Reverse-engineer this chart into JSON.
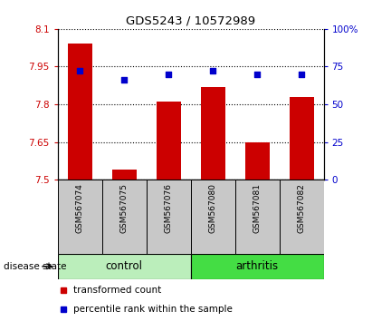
{
  "title": "GDS5243 / 10572989",
  "samples": [
    "GSM567074",
    "GSM567075",
    "GSM567076",
    "GSM567080",
    "GSM567081",
    "GSM567082"
  ],
  "transformed_counts": [
    8.04,
    7.54,
    7.81,
    7.87,
    7.65,
    7.83
  ],
  "percentile_ranks": [
    72,
    66,
    70,
    72,
    70,
    70
  ],
  "ylim_left": [
    7.5,
    8.1
  ],
  "ylim_right": [
    0,
    100
  ],
  "yticks_left": [
    7.5,
    7.65,
    7.8,
    7.95,
    8.1
  ],
  "yticks_right": [
    0,
    25,
    50,
    75,
    100
  ],
  "ytick_labels_left": [
    "7.5",
    "7.65",
    "7.8",
    "7.95",
    "8.1"
  ],
  "ytick_labels_right": [
    "0",
    "25",
    "50",
    "75",
    "100%"
  ],
  "bar_color": "#cc0000",
  "dot_color": "#0000cc",
  "sample_bg_color": "#c8c8c8",
  "groups": [
    {
      "label": "control",
      "indices": [
        0,
        1,
        2
      ],
      "color": "#bbeebb"
    },
    {
      "label": "arthritis",
      "indices": [
        3,
        4,
        5
      ],
      "color": "#44dd44"
    }
  ],
  "disease_state_label": "disease state",
  "legend_bar_label": "transformed count",
  "legend_dot_label": "percentile rank within the sample"
}
